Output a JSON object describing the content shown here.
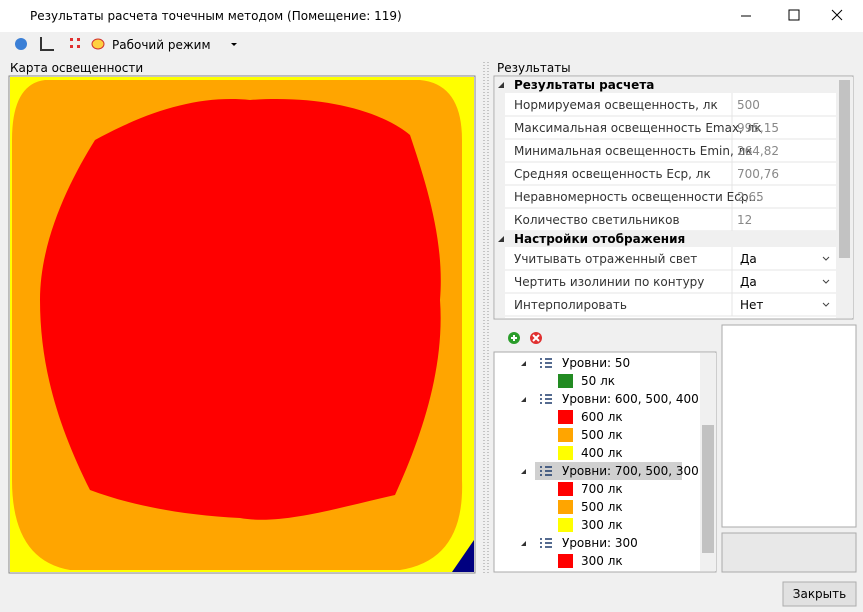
{
  "window": {
    "title": "Результаты расчета точечным методом (Помещение: 119)"
  },
  "toolbar": {
    "mode": "Рабочий режим"
  },
  "map": {
    "title": "Карта освещенности"
  },
  "results": {
    "title": "Результаты",
    "sections": [
      {
        "title": "Результаты расчета",
        "rows": [
          {
            "label": "Нормируемая освещенность, лк",
            "value": "500"
          },
          {
            "label": "Максимальная освещенность Emax, лк",
            "value": "995,15"
          },
          {
            "label": "Минимальная освещенность Emin, лк",
            "value": "264,82"
          },
          {
            "label": "Средняя освещенность Еср, лк",
            "value": "700,76"
          },
          {
            "label": "Неравномерность освещенности Еср...",
            "value": "2,65"
          },
          {
            "label": "Количество светильников",
            "value": "12"
          }
        ]
      },
      {
        "title": "Настройки отображения",
        "rows": [
          {
            "label": "Учитывать отраженный свет",
            "value": "Да",
            "dropdown": true
          },
          {
            "label": "Чертить изолинии по контуру",
            "value": "Да",
            "dropdown": true
          },
          {
            "label": "Интерполировать",
            "value": "Нет",
            "dropdown": true
          }
        ]
      }
    ]
  },
  "levels": {
    "groups": [
      {
        "label": "Уровни: 50",
        "items": [
          {
            "label": "50 лк",
            "color": "#228b22"
          }
        ]
      },
      {
        "label": "Уровни: 600, 500, 400",
        "items": [
          {
            "label": "600 лк",
            "color": "#ff0000"
          },
          {
            "label": "500 лк",
            "color": "#ffa500"
          },
          {
            "label": "400 лк",
            "color": "#ffff00"
          }
        ]
      },
      {
        "label": "Уровни: 700, 500, 300",
        "selected": true,
        "items": [
          {
            "label": "700 лк",
            "color": "#ff0000"
          },
          {
            "label": "500 лк",
            "color": "#ffa500"
          },
          {
            "label": "300 лк",
            "color": "#ffff00"
          }
        ]
      },
      {
        "label": "Уровни: 300",
        "items": [
          {
            "label": "300 лк",
            "color": "#ff0000"
          }
        ]
      }
    ]
  },
  "buttons": {
    "close": "Закрыть"
  }
}
